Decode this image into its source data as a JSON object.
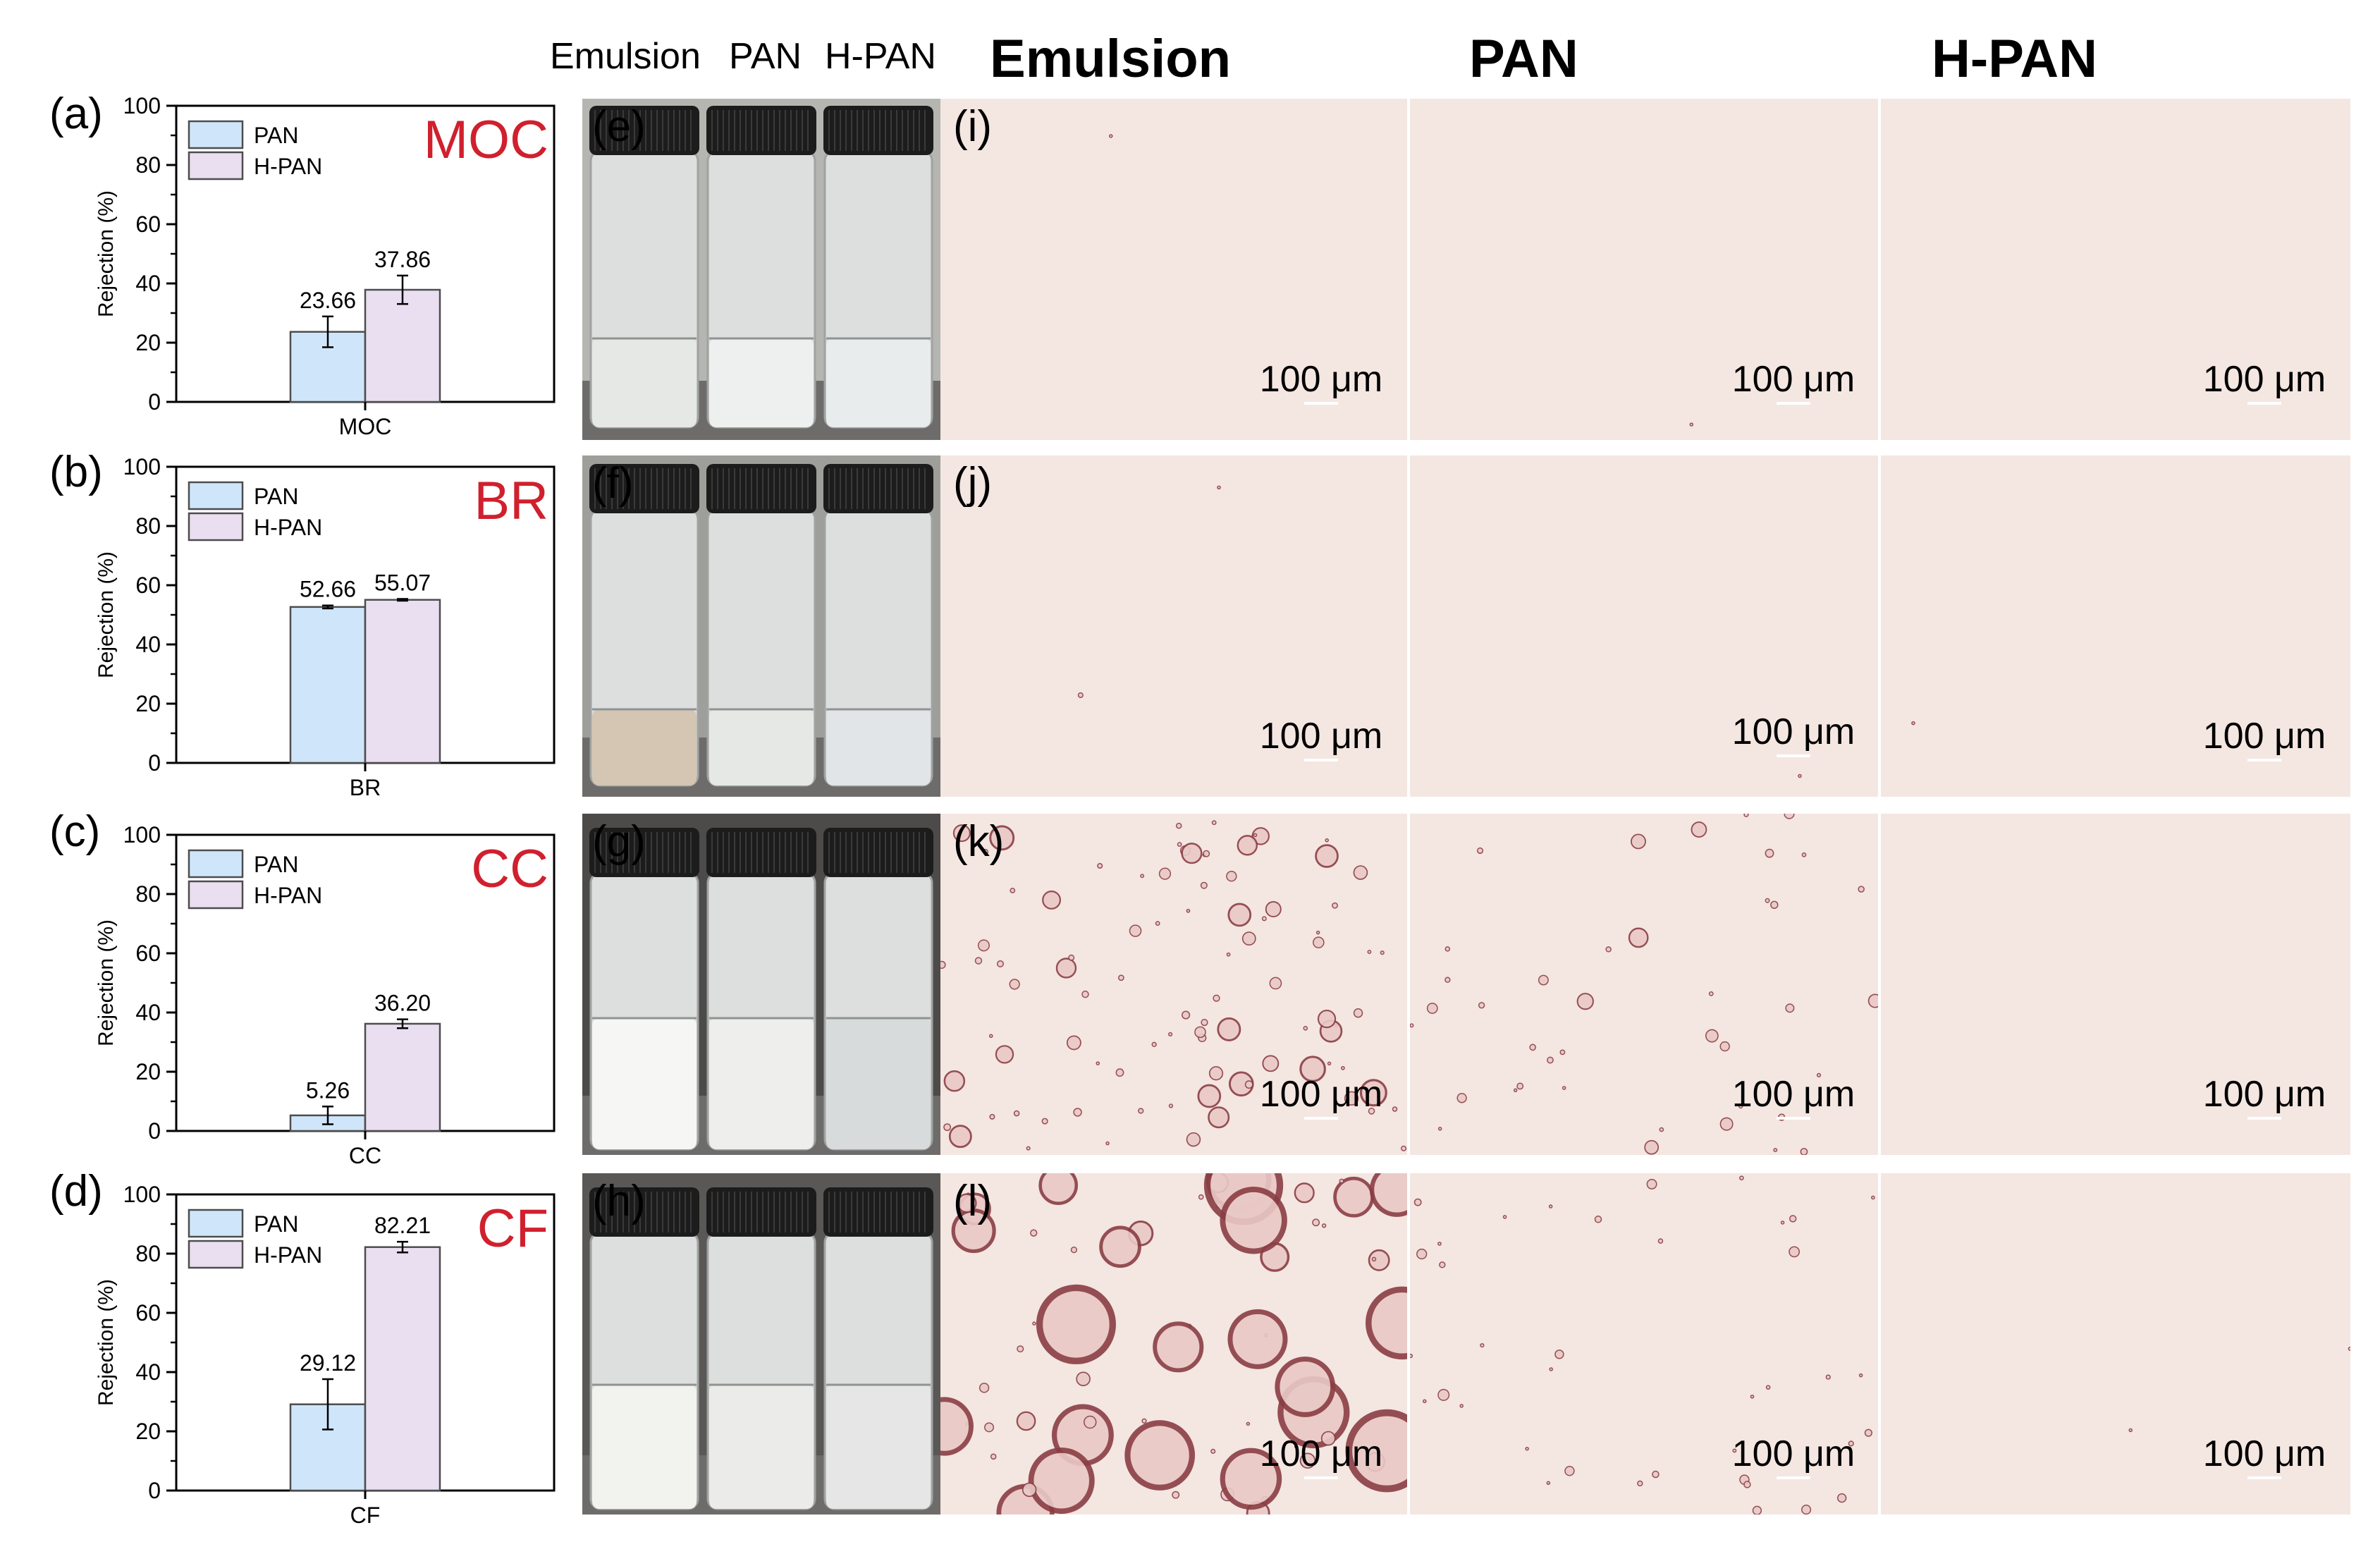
{
  "column_headers": {
    "photo_emulsion": "Emulsion",
    "photo_pan": "PAN",
    "photo_hpan": "H-PAN",
    "micro_emulsion": "Emulsion",
    "micro_pan": "PAN",
    "micro_hpan": "H-PAN"
  },
  "colors": {
    "pan_fill": "#cfe6fa",
    "hpan_fill": "#eadff0",
    "bar_stroke": "#4d4d4d",
    "label_red": "#d0202e",
    "micro_background": "#f4e6e1"
  },
  "scale_bar_label": "100 μm",
  "rows": [
    {
      "letter": "(a)",
      "photo_letter": "(e)",
      "micro_letter": "(i)",
      "contaminant": "MOC"
    },
    {
      "letter": "(b)",
      "photo_letter": "(f)",
      "micro_letter": "(j)",
      "contaminant": "BR"
    },
    {
      "letter": "(c)",
      "photo_letter": "(g)",
      "micro_letter": "(k)",
      "contaminant": "CC"
    },
    {
      "letter": "(d)",
      "photo_letter": "(h)",
      "micro_letter": "(l)",
      "contaminant": "CF"
    }
  ],
  "chart_data": [
    {
      "type": "bar",
      "title": "MOC",
      "categories": [
        "MOC"
      ],
      "ylabel": "Rejection (%)",
      "xlabel": "",
      "ylim": [
        0,
        100
      ],
      "yticks": [
        "0",
        "20",
        "40",
        "60",
        "80",
        "100"
      ],
      "legend": "top-left",
      "series": [
        {
          "name": "PAN",
          "values": [
            23.66
          ],
          "error": [
            5.2
          ],
          "labels": [
            "23.66"
          ]
        },
        {
          "name": "H-PAN",
          "values": [
            37.86
          ],
          "error": [
            4.8
          ],
          "labels": [
            "37.86"
          ]
        }
      ]
    },
    {
      "type": "bar",
      "title": "BR",
      "categories": [
        "BR"
      ],
      "ylabel": "Rejection (%)",
      "xlabel": "",
      "ylim": [
        0,
        100
      ],
      "yticks": [
        "0",
        "20",
        "40",
        "60",
        "80",
        "100"
      ],
      "legend": "top-left",
      "series": [
        {
          "name": "PAN",
          "values": [
            52.66
          ],
          "error": [
            0.5
          ],
          "labels": [
            "52.66"
          ]
        },
        {
          "name": "H-PAN",
          "values": [
            55.07
          ],
          "error": [
            0.3
          ],
          "labels": [
            "55.07"
          ]
        }
      ]
    },
    {
      "type": "bar",
      "title": "CC",
      "categories": [
        "CC"
      ],
      "ylabel": "Rejection (%)",
      "xlabel": "",
      "ylim": [
        0,
        100
      ],
      "yticks": [
        "0",
        "20",
        "40",
        "60",
        "80",
        "100"
      ],
      "legend": "top-left",
      "series": [
        {
          "name": "PAN",
          "values": [
            5.26
          ],
          "error": [
            3.0
          ],
          "labels": [
            "5.26"
          ]
        },
        {
          "name": "H-PAN",
          "values": [
            36.2
          ],
          "error": [
            1.5
          ],
          "labels": [
            "36.20"
          ]
        }
      ]
    },
    {
      "type": "bar",
      "title": "CF",
      "categories": [
        "CF"
      ],
      "ylabel": "Rejection (%)",
      "xlabel": "",
      "ylim": [
        0,
        100
      ],
      "yticks": [
        "0",
        "20",
        "40",
        "60",
        "80",
        "100"
      ],
      "legend": "top-left",
      "series": [
        {
          "name": "PAN",
          "values": [
            29.12
          ],
          "error": [
            8.5
          ],
          "labels": [
            "29.12"
          ]
        },
        {
          "name": "H-PAN",
          "values": [
            82.21
          ],
          "error": [
            1.8
          ],
          "labels": [
            "82.21"
          ]
        }
      ]
    }
  ]
}
